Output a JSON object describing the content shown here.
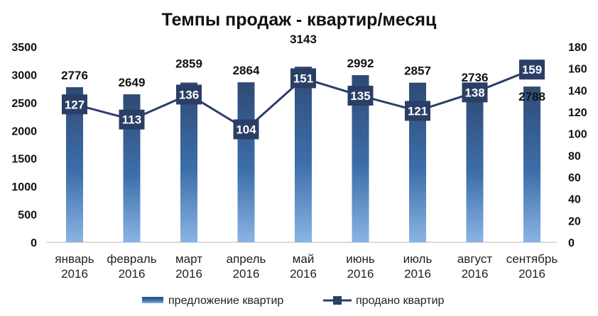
{
  "chart_data": {
    "type": "bar+line",
    "title": "Темпы продаж - квартир/месяц",
    "categories": [
      [
        "январь",
        "2016"
      ],
      [
        "февраль",
        "2016"
      ],
      [
        "март",
        "2016"
      ],
      [
        "апрель",
        "2016"
      ],
      [
        "май",
        "2016"
      ],
      [
        "июнь",
        "2016"
      ],
      [
        "июль",
        "2016"
      ],
      [
        "август",
        "2016"
      ],
      [
        "сентябрь",
        "2016"
      ]
    ],
    "series": [
      {
        "name": "предложение квартир",
        "type": "bar",
        "axis": "left",
        "values": [
          2776,
          2649,
          2859,
          2864,
          3143,
          2992,
          2857,
          2736,
          2788
        ],
        "color_top": "#2f4a74",
        "color_bottom": "#8ab4e3"
      },
      {
        "name": "продано квартир",
        "type": "line",
        "axis": "right",
        "values": [
          127,
          113,
          136,
          104,
          151,
          135,
          121,
          138,
          159
        ],
        "color": "#2a3e66"
      }
    ],
    "y_left": {
      "min": 0,
      "max": 3500,
      "ticks": [
        "0",
        "500",
        "1000",
        "1500",
        "2000",
        "2500",
        "3000",
        "3500"
      ]
    },
    "y_right": {
      "min": 0,
      "max": 180,
      "ticks": [
        "0",
        "20",
        "40",
        "60",
        "80",
        "100",
        "120",
        "140",
        "160",
        "180"
      ]
    },
    "legend_position": "bottom",
    "grid": false
  }
}
